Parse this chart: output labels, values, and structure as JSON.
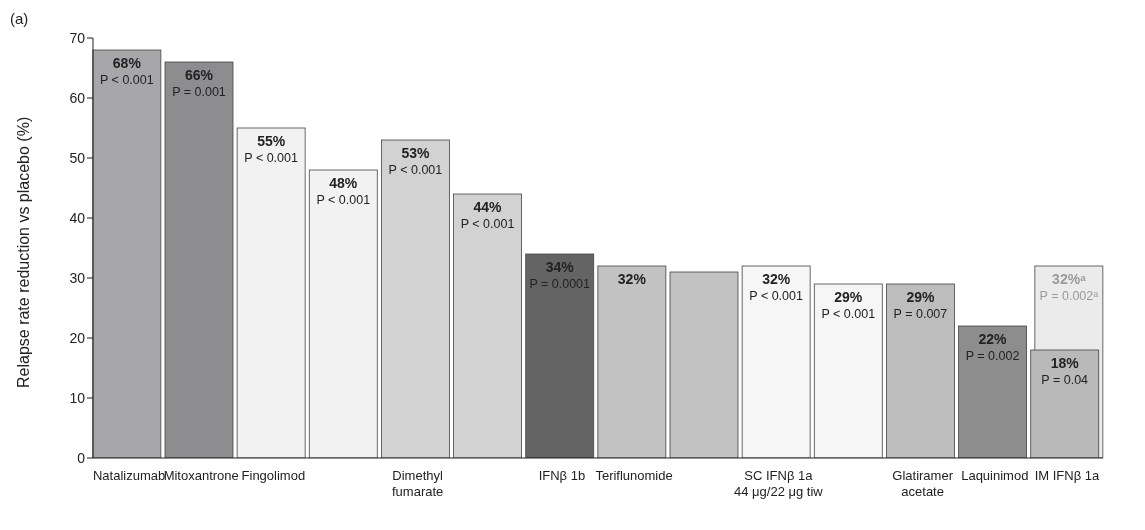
{
  "chart_data": {
    "type": "bar",
    "title": "(a)",
    "ylabel": "Relapse rate reduction vs placebo (%)",
    "categories": [
      "Natalizumab",
      "Mitoxantrone",
      "Fingolimod",
      null,
      "Dimethyl\nfumarate",
      null,
      "IFNβ 1b",
      "Teriflunomide",
      null,
      "SC IFNβ 1a\n44 μg/22 μg tiw",
      null,
      "Glatiramer\nacetate",
      "Laquinimod",
      "IM IFNβ 1a"
    ],
    "series": [
      {
        "values": [
          null,
          null,
          null,
          null,
          null,
          null,
          null,
          null,
          null,
          null,
          null,
          null,
          null,
          32
        ],
        "color": "#ebebeb",
        "value_labels": [
          null,
          null,
          null,
          null,
          null,
          null,
          null,
          null,
          null,
          null,
          null,
          null,
          null,
          "32%$^{a}$\nP = 0.002$^{a}$"
        ]
      },
      {
        "values": [
          68,
          66,
          55,
          48,
          53,
          44,
          34,
          32,
          31,
          32,
          29,
          29,
          22,
          18
        ],
        "colors": [
          "#a7a7a9",
          "#8d8d8f",
          "#f2f2f2",
          "#f2f2f2",
          "#d2d2d2",
          "#d2d2d2",
          "#646464",
          "#c2c2c2",
          "#c2c2c2",
          "#f6f6f6",
          "#f6f6f6",
          "#bdbdbd",
          "#8d8d8d",
          "#b9b9b9"
        ],
        "value_labels": [
          "68%\nP < 0.001",
          "66%\nP = 0.001",
          "55%\nP < 0.001",
          "48%\nP < 0.001",
          "53%\nP < 0.001",
          "44%\nP < 0.001",
          "34%\nP = 0.0001",
          "32%",
          null,
          "32%\nP < 0.001",
          "29%\nP < 0.001",
          "29%\nP = 0.007",
          "22%\nP = 0.002",
          "18%\nP = 0.04"
        ]
      }
    ],
    "ylim": [
      0,
      70
    ],
    "yticks": [
      0,
      10,
      20,
      30,
      40,
      50,
      60,
      70
    ],
    "grid": false
  }
}
